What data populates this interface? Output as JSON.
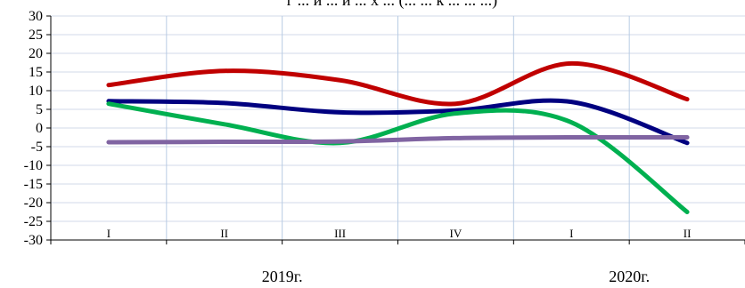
{
  "title_fragment": "г ... и ... и ... х ... (... ... к ... ... ...)",
  "chart_data": {
    "type": "line",
    "categories": [
      "I",
      "II",
      "III",
      "IV",
      "I",
      "II"
    ],
    "groups": [
      {
        "label": "2019г.",
        "span": [
          0,
          3
        ]
      },
      {
        "label": "2020г.",
        "span": [
          4,
          5
        ]
      }
    ],
    "y_ticks": [
      "30",
      "25",
      "20",
      "15",
      "10",
      "5",
      "0",
      "-5",
      "-10",
      "-15",
      "-20",
      "-25",
      "-30"
    ],
    "ylim": [
      -30,
      30
    ],
    "grid": true,
    "series": [
      {
        "color": "#C00000",
        "values": [
          11.5,
          15.3,
          12.8,
          6.5,
          17.3,
          7.7
        ]
      },
      {
        "color": "#000080",
        "values": [
          7.2,
          6.7,
          4.2,
          4.7,
          7.0,
          -4.0
        ]
      },
      {
        "color": "#00B050",
        "values": [
          6.5,
          1.0,
          -4.0,
          3.9,
          1.5,
          -22.5
        ]
      },
      {
        "color": "#8064A2",
        "values": [
          -3.8,
          -3.7,
          -3.6,
          -2.7,
          -2.5,
          -2.5
        ]
      }
    ]
  }
}
